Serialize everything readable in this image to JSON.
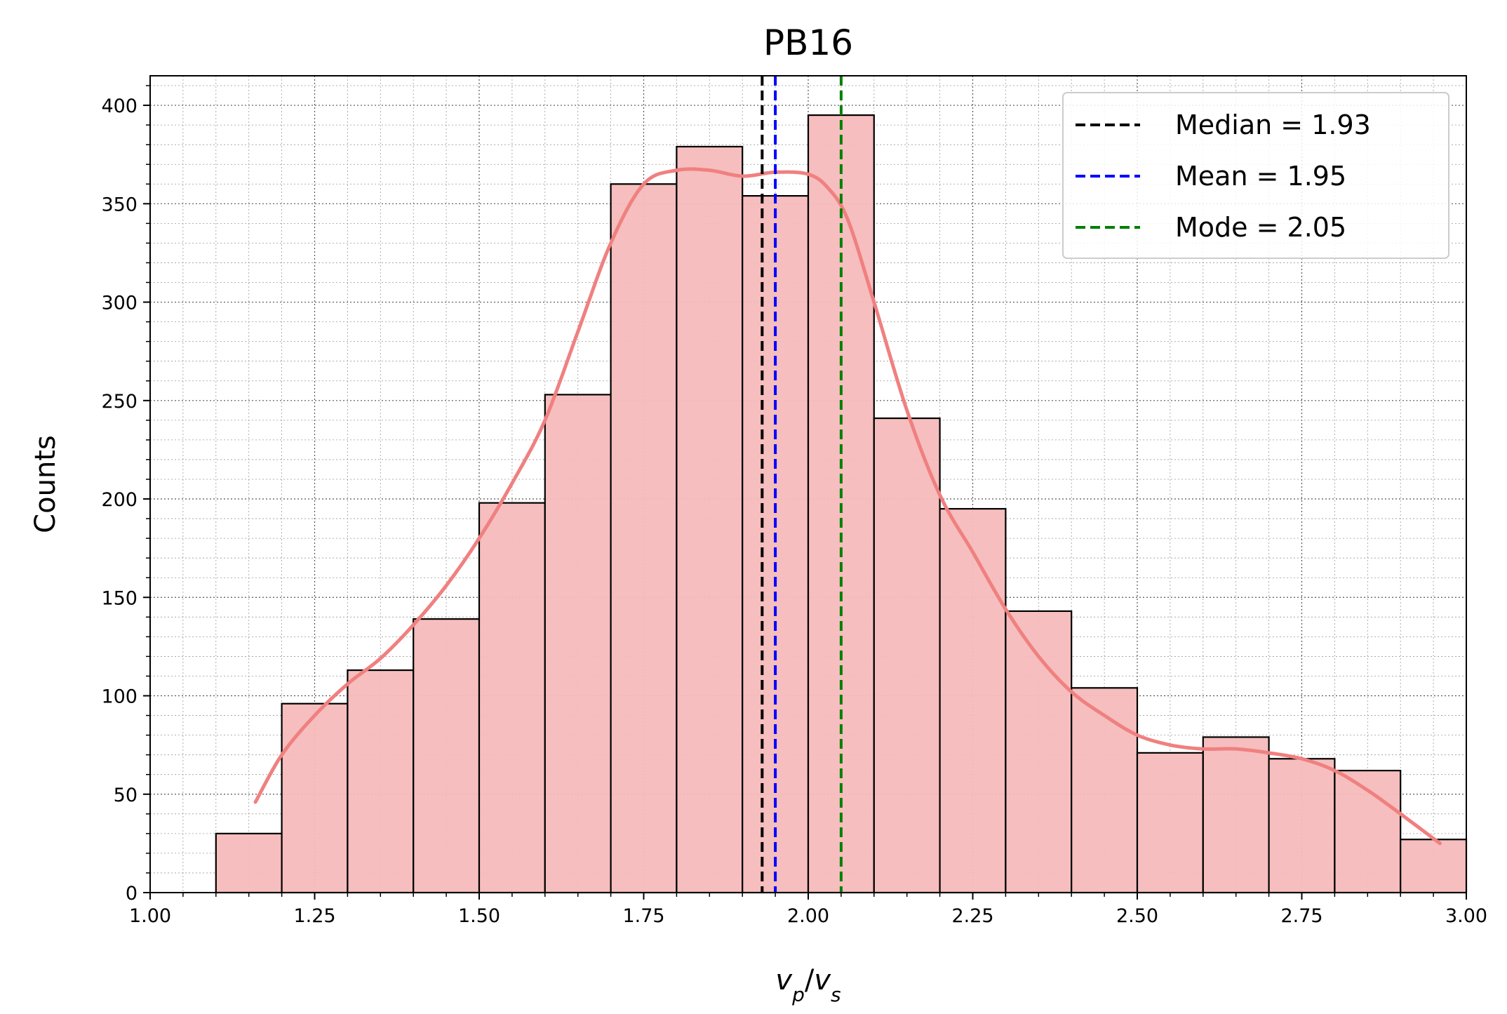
{
  "chart_data": {
    "type": "bar",
    "title": "PB16",
    "xlabel": {
      "main": "v",
      "sub1": "p",
      "sep": "/",
      "main2": "v",
      "sub2": "s"
    },
    "ylabel": "Counts",
    "xlim": [
      1.0,
      3.0
    ],
    "ylim": [
      0,
      415
    ],
    "bin_width": 0.1,
    "bins": [
      {
        "x0": 1.1,
        "x1": 1.2,
        "count": 30
      },
      {
        "x0": 1.2,
        "x1": 1.3,
        "count": 96
      },
      {
        "x0": 1.3,
        "x1": 1.4,
        "count": 113
      },
      {
        "x0": 1.4,
        "x1": 1.5,
        "count": 139
      },
      {
        "x0": 1.5,
        "x1": 1.6,
        "count": 198
      },
      {
        "x0": 1.6,
        "x1": 1.7,
        "count": 253
      },
      {
        "x0": 1.7,
        "x1": 1.8,
        "count": 360
      },
      {
        "x0": 1.8,
        "x1": 1.9,
        "count": 379
      },
      {
        "x0": 1.9,
        "x1": 2.0,
        "count": 354
      },
      {
        "x0": 2.0,
        "x1": 2.1,
        "count": 395
      },
      {
        "x0": 2.1,
        "x1": 2.2,
        "count": 241
      },
      {
        "x0": 2.2,
        "x1": 2.3,
        "count": 195
      },
      {
        "x0": 2.3,
        "x1": 2.4,
        "count": 143
      },
      {
        "x0": 2.4,
        "x1": 2.5,
        "count": 104
      },
      {
        "x0": 2.5,
        "x1": 2.6,
        "count": 71
      },
      {
        "x0": 2.6,
        "x1": 2.7,
        "count": 79
      },
      {
        "x0": 2.7,
        "x1": 2.8,
        "count": 68
      },
      {
        "x0": 2.8,
        "x1": 2.9,
        "count": 62
      },
      {
        "x0": 2.9,
        "x1": 3.0,
        "count": 27
      }
    ],
    "kde": {
      "x": [
        1.16,
        1.2,
        1.25,
        1.3,
        1.35,
        1.4,
        1.45,
        1.5,
        1.55,
        1.6,
        1.65,
        1.7,
        1.75,
        1.8,
        1.85,
        1.9,
        1.95,
        2.0,
        2.03,
        2.06,
        2.1,
        2.15,
        2.2,
        2.25,
        2.3,
        2.35,
        2.4,
        2.45,
        2.5,
        2.55,
        2.6,
        2.65,
        2.7,
        2.75,
        2.8,
        2.85,
        2.9,
        2.96
      ],
      "y": [
        46,
        70,
        90,
        106,
        119,
        136,
        156,
        180,
        208,
        240,
        285,
        330,
        360,
        367,
        367,
        364,
        366,
        365,
        358,
        342,
        300,
        245,
        202,
        173,
        144,
        120,
        102,
        90,
        80,
        75,
        73,
        73,
        71,
        68,
        62,
        52,
        40,
        25
      ]
    },
    "vlines": [
      {
        "label": "Median = 1.93",
        "x": 1.93,
        "color": "#000000"
      },
      {
        "label": "Mean = 1.95",
        "x": 1.95,
        "color": "#0000ff"
      },
      {
        "label": "Mode = 2.05",
        "x": 2.05,
        "color": "#008000"
      }
    ],
    "xticks": [
      "1.00",
      "1.25",
      "1.50",
      "1.75",
      "2.00",
      "2.25",
      "2.50",
      "2.75",
      "3.00"
    ],
    "xtick_values": [
      1.0,
      1.25,
      1.5,
      1.75,
      2.0,
      2.25,
      2.5,
      2.75,
      3.0
    ],
    "yticks": [
      "0",
      "50",
      "100",
      "150",
      "200",
      "250",
      "300",
      "350",
      "400"
    ],
    "ytick_values": [
      0,
      50,
      100,
      150,
      200,
      250,
      300,
      350,
      400
    ],
    "grid": true,
    "legend_position": "top-right",
    "colors": {
      "bar_fill": "#f5baba",
      "bar_edge": "#000000",
      "kde_line": "#f08080"
    }
  }
}
